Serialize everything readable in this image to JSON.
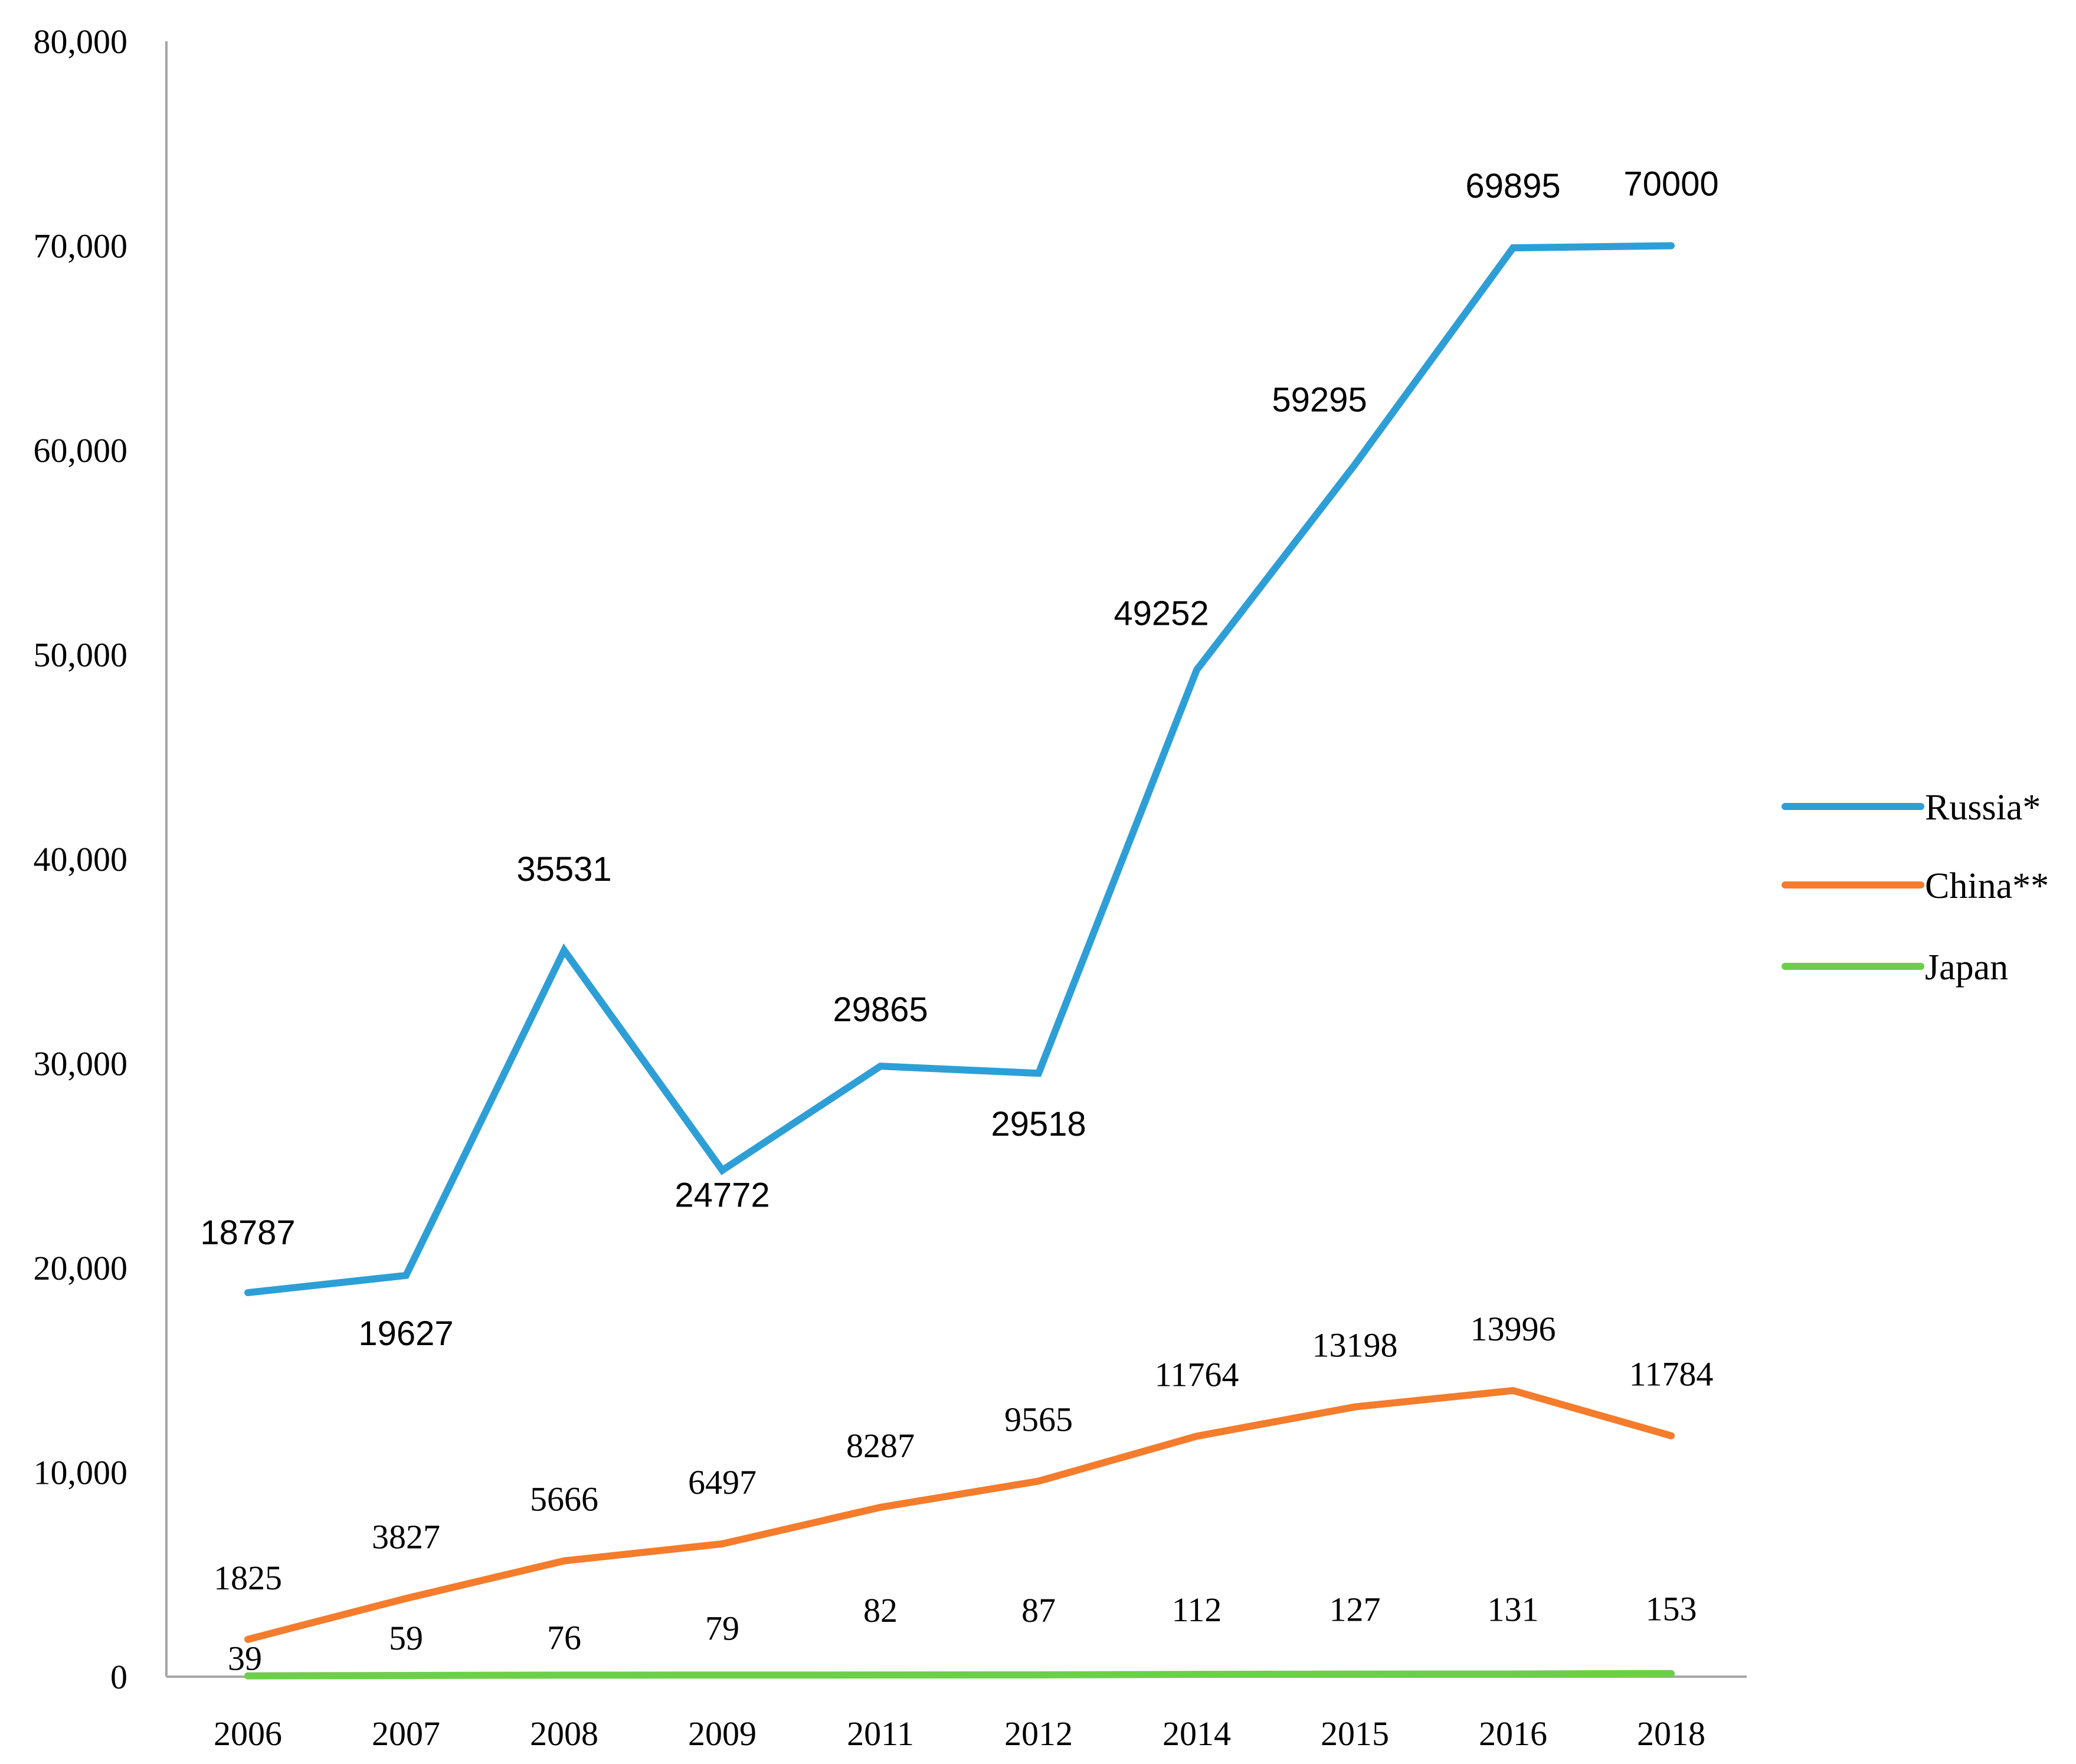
{
  "chart_data": {
    "type": "line",
    "title": "",
    "xlabel": "",
    "ylabel": "",
    "categories": [
      "2006",
      "2007",
      "2008",
      "2009",
      "2011",
      "2012",
      "2014",
      "2015",
      "2016",
      "2018"
    ],
    "ylim": [
      0,
      80000
    ],
    "yticks": [
      0,
      10000,
      20000,
      30000,
      40000,
      50000,
      60000,
      70000,
      80000
    ],
    "ytick_labels": [
      "0",
      "10,000",
      "20,000",
      "30,000",
      "40,000",
      "50,000",
      "60,000",
      "70,000",
      "80,000"
    ],
    "grid": false,
    "legend_position": "right",
    "series": [
      {
        "name": "Russia*",
        "color": "#2e9fd6",
        "values": [
          18787,
          19627,
          35531,
          24772,
          29865,
          29518,
          49252,
          59295,
          69895,
          70000
        ],
        "labels": [
          "18787",
          "19627",
          "35531",
          "24772",
          "29865",
          "29518",
          "49252",
          "59295",
          "69895",
          "70000"
        ]
      },
      {
        "name": "China**",
        "color": "#f47c2c",
        "values": [
          1825,
          3827,
          5666,
          6497,
          8287,
          9565,
          11764,
          13198,
          13996,
          11784
        ],
        "labels": [
          "1825",
          "3827",
          "5666",
          "6497",
          "8287",
          "9565",
          "11764",
          "13198",
          "13996",
          "11784"
        ]
      },
      {
        "name": "Japan",
        "color": "#6ccf4a",
        "values": [
          39,
          59,
          76,
          79,
          82,
          87,
          112,
          127,
          131,
          153
        ],
        "labels": [
          "39",
          "59",
          "76",
          "79",
          "82",
          "87",
          "112",
          "127",
          "131",
          "153"
        ]
      }
    ]
  }
}
